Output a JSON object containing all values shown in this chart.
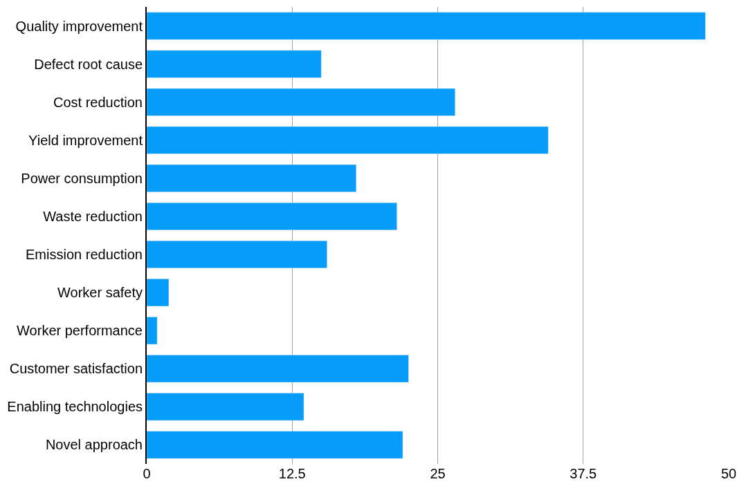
{
  "chart_data": {
    "type": "bar",
    "orientation": "horizontal",
    "categories": [
      "Quality improvement",
      "Defect root cause",
      "Cost reduction",
      "Yield improvement",
      "Power consumption",
      "Waste reduction",
      "Emission reduction",
      "Worker safety",
      "Worker performance",
      "Customer satisfaction",
      "Enabling technologies",
      "Novel approach"
    ],
    "values": [
      48,
      15,
      26.5,
      34.5,
      18,
      21.5,
      15.5,
      1.9,
      0.9,
      22.5,
      13.5,
      22
    ],
    "color": "#069cfa",
    "xlim": [
      0,
      50
    ],
    "xticks": [
      0,
      12.5,
      25,
      37.5,
      50
    ],
    "grid": "x"
  }
}
